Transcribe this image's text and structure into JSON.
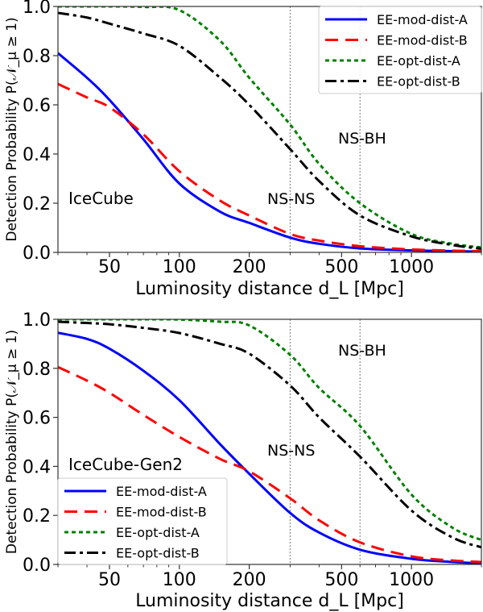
{
  "chart_data": [
    {
      "type": "line",
      "panel_label": "IceCube",
      "xlabel": "Luminosity distance d_L [Mpc]",
      "ylabel": "Detection Probability P(𝒩_μ ≥ 1)",
      "xscale": "log",
      "xlim": [
        30,
        2000
      ],
      "ylim": [
        0,
        1
      ],
      "xticks": [
        50,
        100,
        200,
        500,
        1000
      ],
      "xtick_labels": [
        "50",
        "100",
        "200",
        "500",
        "1000"
      ],
      "yticks": [
        0,
        0.2,
        0.4,
        0.6,
        0.8,
        1.0
      ],
      "ytick_labels": [
        "0.0",
        "0.2",
        "0.4",
        "0.6",
        "0.8",
        "1.0"
      ],
      "legend_position": "top-right",
      "vlines": [
        {
          "x": 300,
          "label": "NS-NS"
        },
        {
          "x": 600,
          "label": "NS-BH"
        }
      ],
      "x": [
        30,
        40,
        50,
        70,
        100,
        150,
        200,
        300,
        400,
        600,
        1000,
        1500,
        2000
      ],
      "series": [
        {
          "name": "EE-mod-dist-A",
          "color": "#0000ff",
          "style": "solid",
          "values": [
            0.81,
            0.71,
            0.62,
            0.46,
            0.28,
            0.165,
            0.12,
            0.06,
            0.035,
            0.016,
            0.008,
            0.005,
            0.003
          ]
        },
        {
          "name": "EE-mod-dist-B",
          "color": "#ff0000",
          "style": "dashed",
          "values": [
            0.685,
            0.63,
            0.59,
            0.48,
            0.33,
            0.21,
            0.15,
            0.075,
            0.048,
            0.025,
            0.012,
            0.007,
            0.005
          ]
        },
        {
          "name": "EE-opt-dist-A",
          "color": "#008000",
          "style": "dotted",
          "values": [
            1.0,
            1.0,
            1.0,
            0.998,
            0.985,
            0.86,
            0.71,
            0.52,
            0.36,
            0.2,
            0.075,
            0.035,
            0.02
          ]
        },
        {
          "name": "EE-opt-dist-B",
          "color": "#000000",
          "style": "dashdot",
          "values": [
            0.974,
            0.955,
            0.93,
            0.89,
            0.84,
            0.71,
            0.6,
            0.42,
            0.29,
            0.15,
            0.065,
            0.03,
            0.015
          ]
        }
      ]
    },
    {
      "type": "line",
      "panel_label": "IceCube-Gen2",
      "xlabel": "Luminosity distance d_L [Mpc]",
      "ylabel": "Detection Probability P(𝒩_μ ≥ 1)",
      "xscale": "log",
      "xlim": [
        30,
        2000
      ],
      "ylim": [
        0,
        1
      ],
      "xticks": [
        50,
        100,
        200,
        500,
        1000
      ],
      "xtick_labels": [
        "50",
        "100",
        "200",
        "500",
        "1000"
      ],
      "yticks": [
        0,
        0.2,
        0.4,
        0.6,
        0.8,
        1.0
      ],
      "ytick_labels": [
        "0.0",
        "0.2",
        "0.4",
        "0.6",
        "0.8",
        "1.0"
      ],
      "legend_position": "bottom-left",
      "vlines": [
        {
          "x": 300,
          "label": "NS-NS"
        },
        {
          "x": 600,
          "label": "NS-BH"
        }
      ],
      "x": [
        30,
        40,
        50,
        70,
        100,
        150,
        200,
        300,
        400,
        600,
        1000,
        1500,
        2000
      ],
      "series": [
        {
          "name": "EE-mod-dist-A",
          "color": "#0000ff",
          "style": "solid",
          "values": [
            0.945,
            0.92,
            0.88,
            0.79,
            0.67,
            0.49,
            0.37,
            0.21,
            0.13,
            0.06,
            0.023,
            0.01,
            0.005
          ]
        },
        {
          "name": "EE-mod-dist-B",
          "color": "#ff0000",
          "style": "dashed",
          "values": [
            0.805,
            0.75,
            0.7,
            0.61,
            0.52,
            0.43,
            0.38,
            0.27,
            0.18,
            0.09,
            0.033,
            0.016,
            0.01
          ]
        },
        {
          "name": "EE-opt-dist-A",
          "color": "#008000",
          "style": "dotted",
          "values": [
            1.0,
            1.0,
            1.0,
            1.0,
            0.999,
            0.99,
            0.975,
            0.855,
            0.72,
            0.565,
            0.285,
            0.15,
            0.1
          ]
        },
        {
          "name": "EE-opt-dist-B",
          "color": "#000000",
          "style": "dashdot",
          "values": [
            0.99,
            0.985,
            0.98,
            0.965,
            0.944,
            0.9,
            0.86,
            0.73,
            0.6,
            0.44,
            0.22,
            0.11,
            0.07
          ]
        }
      ]
    }
  ]
}
